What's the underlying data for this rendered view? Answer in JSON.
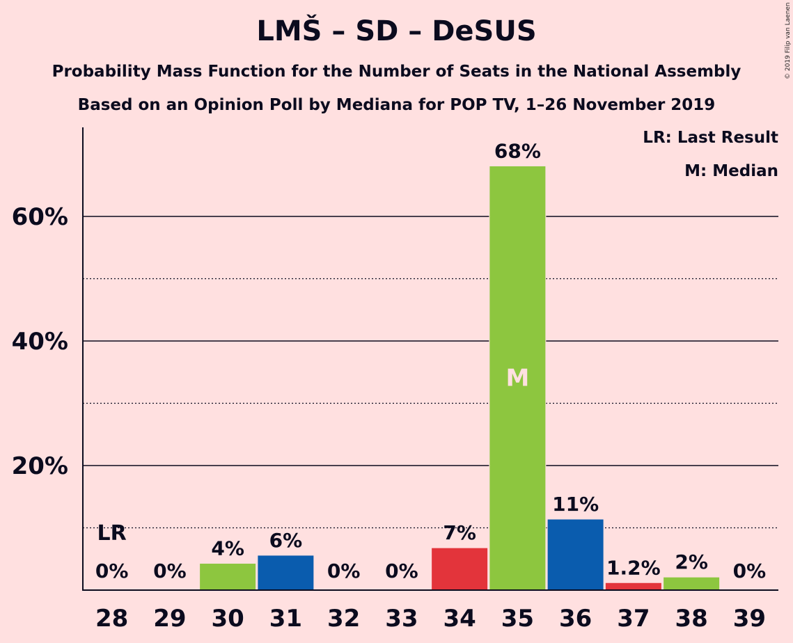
{
  "header": {
    "title": "LMŠ – SD – DeSUS",
    "subtitle1": "Probability Mass Function for the Number of Seats in the National Assembly",
    "subtitle2": "Based on an Opinion Poll by Mediana for POP TV, 1–26 November 2019",
    "copyright": "© 2019 Filip van Laenen"
  },
  "legend": {
    "lr": "LR: Last Result",
    "median": "M: Median"
  },
  "chart_data": {
    "type": "bar",
    "categories": [
      "28",
      "29",
      "30",
      "31",
      "32",
      "33",
      "34",
      "35",
      "36",
      "37",
      "38",
      "39"
    ],
    "values": [
      0,
      0,
      4.3,
      5.6,
      0,
      0,
      6.8,
      68.1,
      11.4,
      1.2,
      2.1,
      0
    ],
    "labels": [
      "0%",
      "0%",
      "4%",
      "6%",
      "0%",
      "0%",
      "7%",
      "68%",
      "11%",
      "1.2%",
      "2%",
      "0%"
    ],
    "colors": [
      "#0A5CAE",
      "#E3343B",
      "#8DC63F",
      "#0A5CAE",
      "#E3343B",
      "#8DC63F",
      "#E3343B",
      "#8DC63F",
      "#0A5CAE",
      "#E3343B",
      "#8DC63F",
      "#0A5CAE"
    ],
    "ylim": [
      0,
      74
    ],
    "yticks": [
      20,
      40,
      60
    ],
    "ytick_labels": [
      "20%",
      "40%",
      "60%"
    ],
    "minor_gridlines": [
      10,
      30,
      50
    ],
    "last_result_category": "28",
    "last_result_label": "LR",
    "median_category": "35",
    "median_label": "M"
  }
}
